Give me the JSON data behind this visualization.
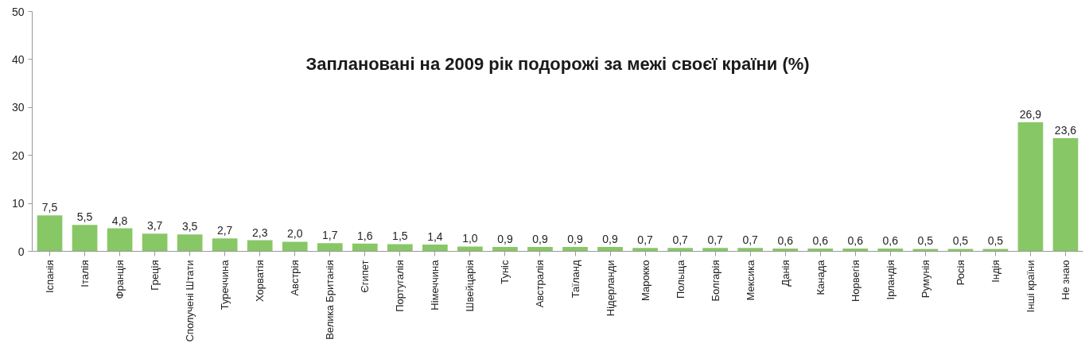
{
  "chart_data": {
    "type": "bar",
    "title": "Заплановані на 2009 рік подорожі за межі своєї країни (%)",
    "categories": [
      "Іспанія",
      "Італія",
      "Франція",
      "Греція",
      "Сполучені Штати",
      "Туреччина",
      "Хорватія",
      "Австрія",
      "Велика Британія",
      "Єгипет",
      "Португалія",
      "Німеччина",
      "Швейцарія",
      "Туніс",
      "Австралія",
      "Таїланд",
      "Нідерланди",
      "Марокко",
      "Польща",
      "Болгарія",
      "Мексика",
      "Данія",
      "Канада",
      "Норвегія",
      "Ірландія",
      "Румунія",
      "Росія",
      "Індія",
      "Інші країни",
      "Не знаю"
    ],
    "values": [
      7.5,
      5.5,
      4.8,
      3.7,
      3.5,
      2.7,
      2.3,
      2.0,
      1.7,
      1.6,
      1.5,
      1.4,
      1.0,
      0.9,
      0.9,
      0.9,
      0.9,
      0.7,
      0.7,
      0.7,
      0.7,
      0.6,
      0.6,
      0.6,
      0.6,
      0.5,
      0.5,
      0.5,
      26.9,
      23.6
    ],
    "value_labels": [
      "7,5",
      "5,5",
      "4,8",
      "3,7",
      "3,5",
      "2,7",
      "2,3",
      "2,0",
      "1,7",
      "1,6",
      "1,5",
      "1,4",
      "1,0",
      "0,9",
      "0,9",
      "0,9",
      "0,9",
      "0,7",
      "0,7",
      "0,7",
      "0,7",
      "0,6",
      "0,6",
      "0,6",
      "0,6",
      "0,5",
      "0,5",
      "0,5",
      "26,9",
      "23,6"
    ],
    "color": "#88c766",
    "ylim": [
      0,
      50
    ],
    "yticks": [
      0,
      10,
      20,
      30,
      40,
      50
    ],
    "grid": false
  }
}
